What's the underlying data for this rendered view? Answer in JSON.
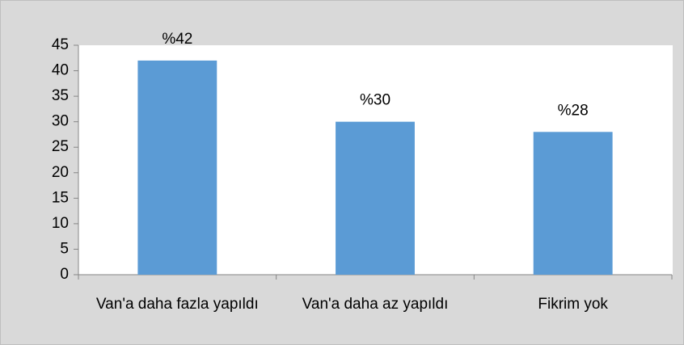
{
  "chart_data": {
    "type": "bar",
    "categories": [
      "Van'a daha fazla yapıldı",
      "Van'a daha az yapıldı",
      "Fikrim yok"
    ],
    "values": [
      42,
      30,
      28
    ],
    "value_labels": [
      "%42",
      "%30",
      "%28"
    ],
    "color": "#5b9bd5",
    "ylim": [
      0,
      45
    ],
    "yticks": [
      0,
      5,
      10,
      15,
      20,
      25,
      30,
      35,
      40,
      45
    ],
    "grid": false
  }
}
